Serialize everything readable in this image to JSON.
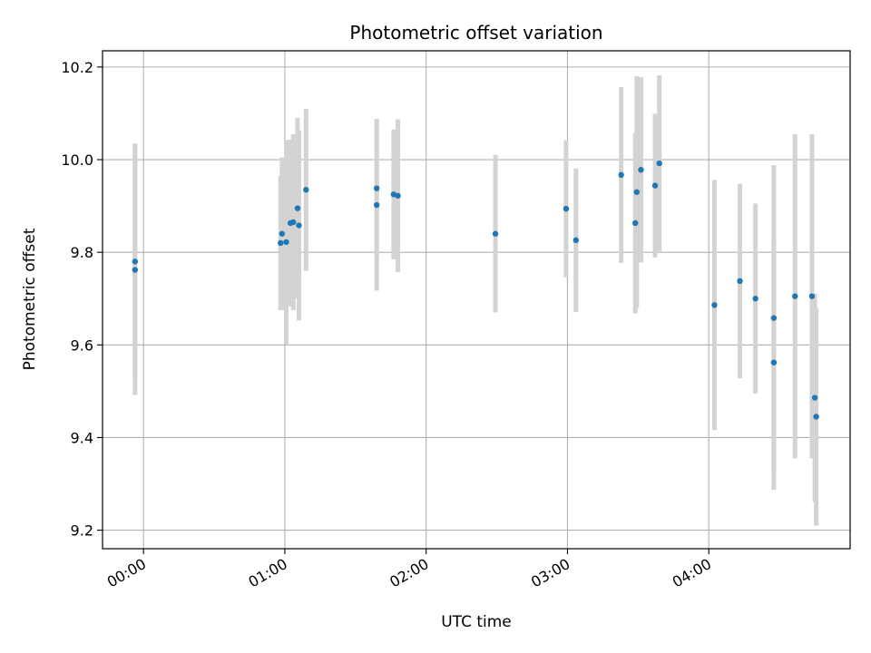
{
  "chart_data": {
    "type": "scatter",
    "title": "Photometric offset variation",
    "xlabel": "UTC time",
    "ylabel": "Photometric offset",
    "xlim_hours": [
      -0.29,
      5.0
    ],
    "ylim": [
      9.16,
      10.235
    ],
    "grid": true,
    "x_ticks": [
      {
        "hours": 0,
        "label": "00:00"
      },
      {
        "hours": 1,
        "label": "01:00"
      },
      {
        "hours": 2,
        "label": "02:00"
      },
      {
        "hours": 3,
        "label": "03:00"
      },
      {
        "hours": 4,
        "label": "04:00"
      }
    ],
    "y_ticks": [
      {
        "value": 9.2,
        "label": "9.2"
      },
      {
        "value": 9.4,
        "label": "9.4"
      },
      {
        "value": 9.6,
        "label": "9.6"
      },
      {
        "value": 9.8,
        "label": "9.8"
      },
      {
        "value": 10.0,
        "label": "10.0"
      },
      {
        "value": 10.2,
        "label": "10.2"
      }
    ],
    "marker_color": "#1f77b4",
    "errorbar_color": "#d3d3d3",
    "points": [
      {
        "x": -0.06,
        "y": 9.78,
        "yerr": 0.255
      },
      {
        "x": -0.06,
        "y": 9.762,
        "yerr": 0.27
      },
      {
        "x": 0.97,
        "y": 9.82,
        "yerr": 0.145
      },
      {
        "x": 0.98,
        "y": 9.84,
        "yerr": 0.165
      },
      {
        "x": 1.01,
        "y": 9.822,
        "yerr": 0.22
      },
      {
        "x": 1.04,
        "y": 9.863,
        "yerr": 0.18
      },
      {
        "x": 1.06,
        "y": 9.865,
        "yerr": 0.19
      },
      {
        "x": 1.09,
        "y": 9.895,
        "yerr": 0.195
      },
      {
        "x": 1.1,
        "y": 9.858,
        "yerr": 0.205
      },
      {
        "x": 1.15,
        "y": 9.935,
        "yerr": 0.175
      },
      {
        "x": 1.65,
        "y": 9.938,
        "yerr": 0.15
      },
      {
        "x": 1.65,
        "y": 9.902,
        "yerr": 0.185
      },
      {
        "x": 1.77,
        "y": 9.925,
        "yerr": 0.14
      },
      {
        "x": 1.8,
        "y": 9.922,
        "yerr": 0.165
      },
      {
        "x": 2.49,
        "y": 9.84,
        "yerr": 0.17
      },
      {
        "x": 2.99,
        "y": 9.894,
        "yerr": 0.148
      },
      {
        "x": 3.06,
        "y": 9.826,
        "yerr": 0.155
      },
      {
        "x": 3.38,
        "y": 9.967,
        "yerr": 0.19
      },
      {
        "x": 3.48,
        "y": 9.863,
        "yerr": 0.195
      },
      {
        "x": 3.49,
        "y": 9.93,
        "yerr": 0.25
      },
      {
        "x": 3.52,
        "y": 9.978,
        "yerr": 0.2
      },
      {
        "x": 3.62,
        "y": 9.944,
        "yerr": 0.155
      },
      {
        "x": 3.65,
        "y": 9.992,
        "yerr": 0.19
      },
      {
        "x": 4.04,
        "y": 9.686,
        "yerr": 0.27
      },
      {
        "x": 4.22,
        "y": 9.738,
        "yerr": 0.21
      },
      {
        "x": 4.33,
        "y": 9.7,
        "yerr": 0.205
      },
      {
        "x": 4.46,
        "y": 9.658,
        "yerr": 0.33
      },
      {
        "x": 4.46,
        "y": 9.562,
        "yerr": 0.275
      },
      {
        "x": 4.61,
        "y": 9.705,
        "yerr": 0.35
      },
      {
        "x": 4.73,
        "y": 9.705,
        "yerr": 0.35
      },
      {
        "x": 4.75,
        "y": 9.486,
        "yerr": 0.225
      },
      {
        "x": 4.76,
        "y": 9.445,
        "yerr": 0.235
      }
    ]
  }
}
